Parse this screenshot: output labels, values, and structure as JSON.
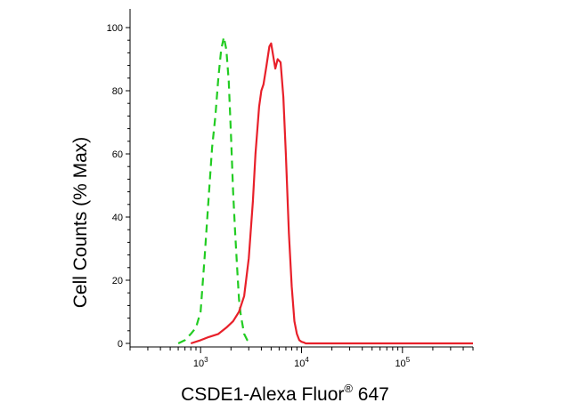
{
  "chart_data": {
    "type": "line",
    "title": "",
    "xlabel": {
      "main": "CSDE1-Alexa Fluor",
      "superscript": "®",
      "suffix": " 647"
    },
    "ylabel": "Cell Counts (% Max)",
    "x_scale": "log",
    "xlim": [
      200,
      500000
    ],
    "ylim": [
      0,
      100
    ],
    "y_ticks": [
      {
        "value": 0,
        "label": "0"
      },
      {
        "value": 20,
        "label": "20"
      },
      {
        "value": 40,
        "label": "40"
      },
      {
        "value": 60,
        "label": "60"
      },
      {
        "value": 80,
        "label": "80"
      },
      {
        "value": 100,
        "label": "100"
      }
    ],
    "x_ticks": [
      {
        "value": 1000,
        "base": "10",
        "exp": "3"
      },
      {
        "value": 10000,
        "base": "10",
        "exp": "4"
      },
      {
        "value": 100000,
        "base": "10",
        "exp": "5"
      }
    ],
    "grid": false,
    "series": [
      {
        "color": "#22cc22",
        "dash": "dashed",
        "x": [
          600,
          700,
          800,
          900,
          1000,
          1100,
          1200,
          1300,
          1400,
          1500,
          1600,
          1700,
          1800,
          1900,
          2000,
          2100,
          2200,
          2300,
          2400,
          2500,
          2700,
          2900,
          3100
        ],
        "y": [
          0,
          1,
          3,
          5,
          10,
          28,
          46,
          62,
          72,
          84,
          93,
          97,
          93,
          83,
          66,
          48,
          35,
          24,
          14,
          9,
          3,
          1,
          0
        ]
      },
      {
        "color": "#e8202a",
        "dash": "solid",
        "x": [
          800,
          1000,
          1200,
          1500,
          1800,
          2100,
          2400,
          2700,
          3000,
          3300,
          3500,
          3800,
          4000,
          4200,
          4500,
          4800,
          5000,
          5300,
          5500,
          5800,
          6200,
          6600,
          7000,
          7500,
          8000,
          8500,
          9000,
          9500,
          10000,
          10500,
          11000,
          13000,
          500000
        ],
        "y": [
          0,
          1,
          2,
          3,
          5,
          7,
          10,
          15,
          27,
          45,
          60,
          75,
          80,
          82,
          88,
          94,
          95,
          90,
          87,
          90,
          89,
          78,
          60,
          35,
          18,
          7,
          3,
          1,
          0.5,
          0.3,
          0,
          0,
          0
        ]
      }
    ]
  }
}
